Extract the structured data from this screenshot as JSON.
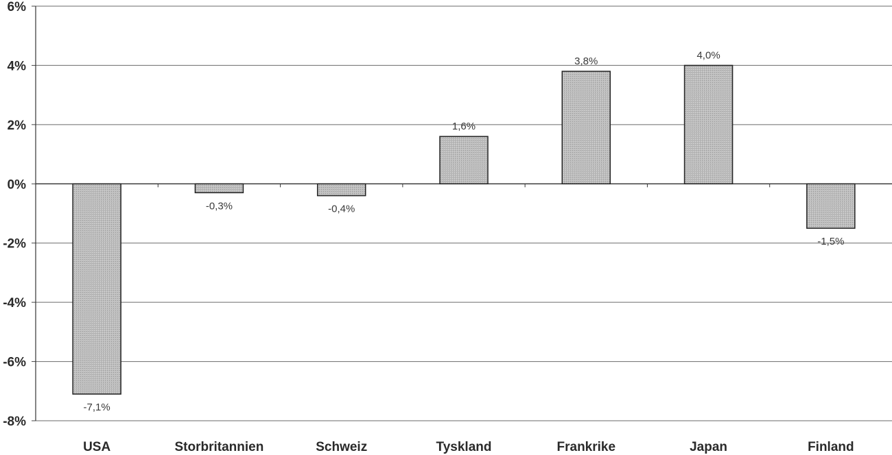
{
  "chart_data": {
    "type": "bar",
    "categories": [
      "USA",
      "Storbritannien",
      "Schweiz",
      "Tyskland",
      "Frankrike",
      "Japan",
      "Finland"
    ],
    "values": [
      -7.1,
      -0.3,
      -0.4,
      1.6,
      3.8,
      4.0,
      -1.5
    ],
    "data_labels": [
      "-7,1%",
      "-0,3%",
      "-0,4%",
      "1,6%",
      "3,8%",
      "4,0%",
      "-1,5%"
    ],
    "title": "",
    "xlabel": "",
    "ylabel": "",
    "ylim": [
      -8,
      6
    ],
    "ytick_values": [
      6,
      4,
      2,
      0,
      -2,
      -4,
      -6,
      -8
    ],
    "ytick_labels": [
      "6%",
      "4%",
      "2%",
      "0%",
      "-2%",
      "-4%",
      "-6%",
      "-8%"
    ],
    "grid": true,
    "legend": "none",
    "bar_color": "#bdbdbd",
    "bar_edge_color": "#222222"
  }
}
